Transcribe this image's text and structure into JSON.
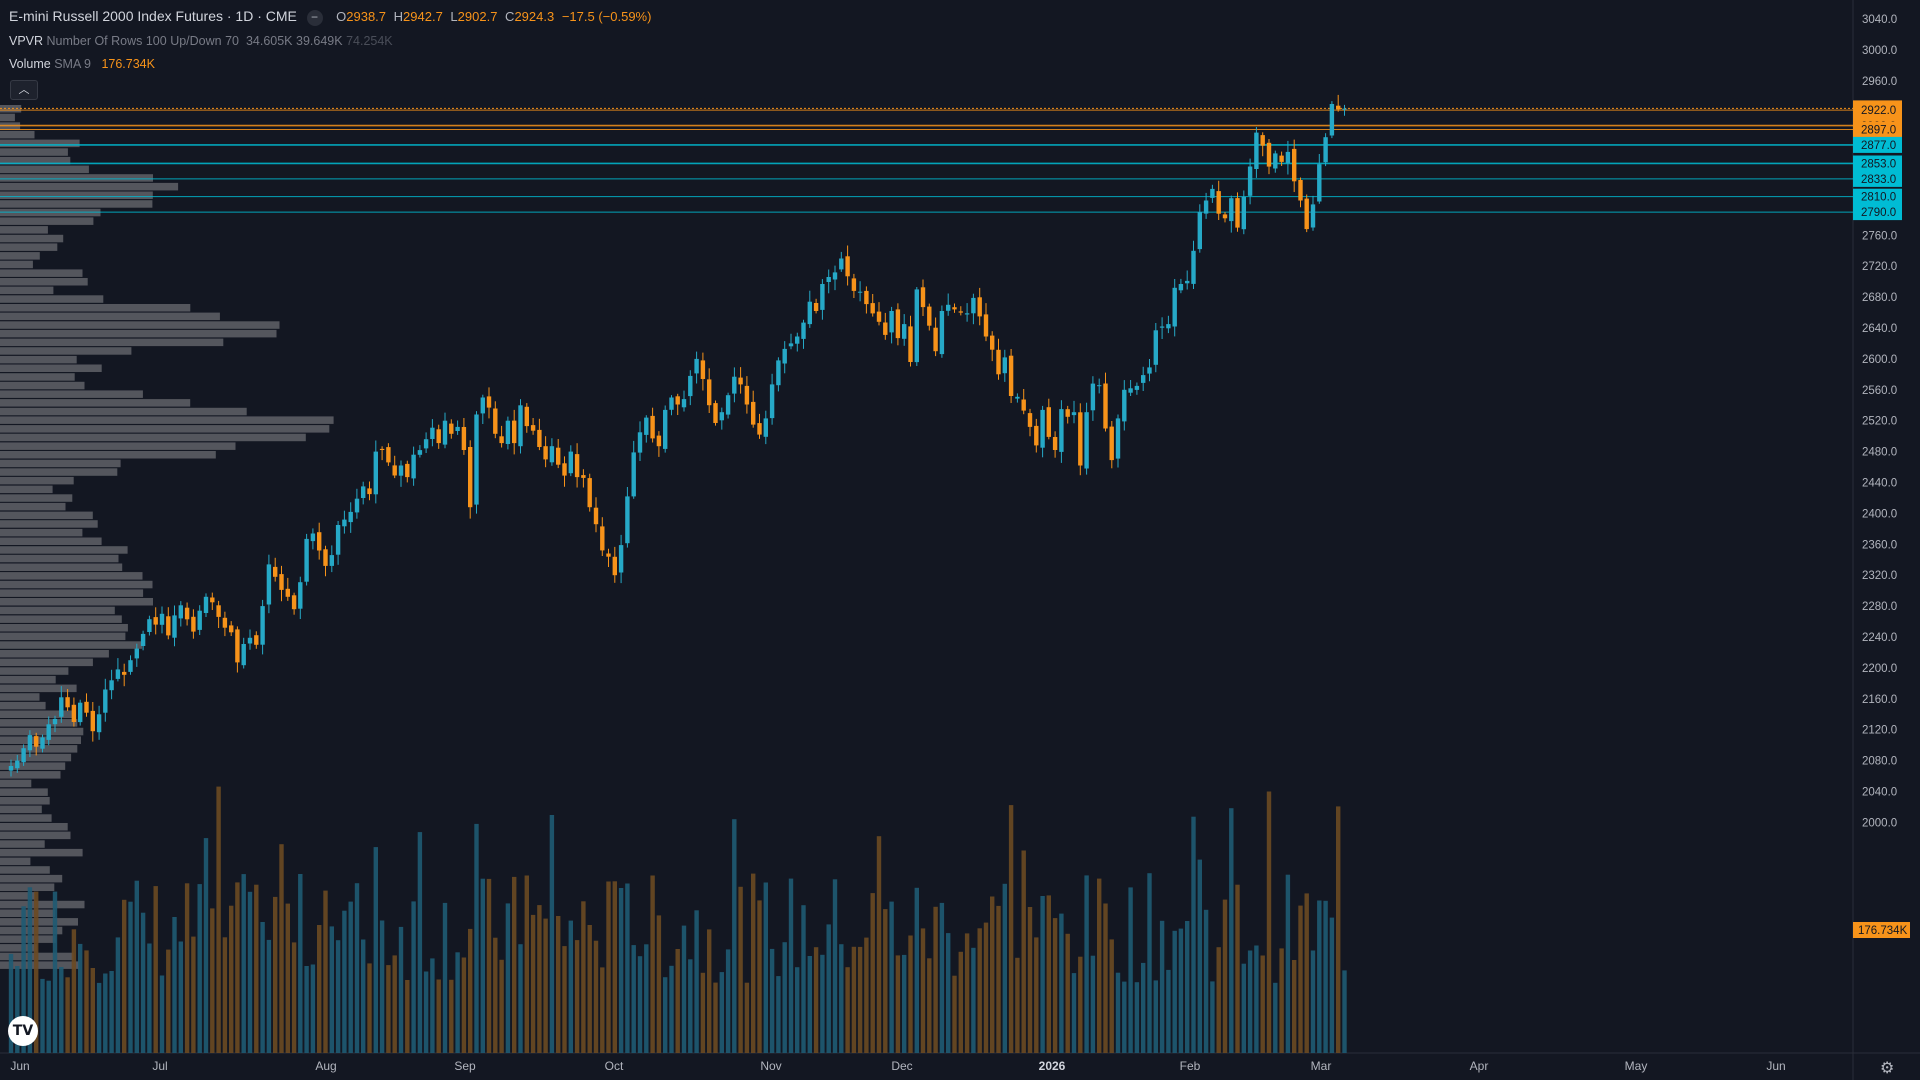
{
  "header": {
    "title": "E-mini Russell 2000 Index Futures · 1D · CME",
    "open_label": "O",
    "open": "2938.7",
    "high_label": "H",
    "high": "2942.7",
    "low_label": "L",
    "low": "2902.7",
    "close_label": "C",
    "close": "2924.3",
    "change": "−17.5 (−0.59%)"
  },
  "vpvr": {
    "name": "VPVR",
    "params": "Number Of Rows 100 Up/Down 70",
    "up": "34.605K",
    "down": "39.649K",
    "total": "74.254K"
  },
  "volume": {
    "name": "Volume",
    "params": "SMA 9",
    "value": "176.734K"
  },
  "colors": {
    "background": "#131722",
    "up": "#26a9c7",
    "down": "#f7931a",
    "profile": "#6d6f75",
    "last_price_line": "#f7931a",
    "level_orange": "#f7931a",
    "level_cyan": "#00bcd4"
  },
  "icons": {
    "hide": "minus-circle-icon",
    "collapse": "chevron-up-icon",
    "logo": "tradingview-logo-icon",
    "settings": "gear-icon"
  },
  "chart_data": {
    "type": "candlestick",
    "title": "E-mini Russell 2000 Index Futures · 1D · CME",
    "interval": "1D",
    "x_axis": {
      "labels": [
        "Jun",
        "Jul",
        "Aug",
        "Sep",
        "Oct",
        "Nov",
        "Dec",
        "2026",
        "Feb",
        "Mar",
        "Apr",
        "May",
        "Jun"
      ],
      "label_dates": [
        "2025-06-01",
        "2025-07-01",
        "2025-08-01",
        "2025-09-01",
        "2025-10-01",
        "2025-11-01",
        "2025-12-01",
        "2026-01-01",
        "2026-02-01",
        "2026-03-01",
        "2026-04-01",
        "2026-05-01",
        "2026-06-01"
      ]
    },
    "y_axis": {
      "ticks": [
        "3040.0",
        "3000.0",
        "2960.0",
        "2920.0",
        "2880.0",
        "2840.0",
        "2800.0",
        "2760.0",
        "2720.0",
        "2680.0",
        "2640.0",
        "2600.0",
        "2560.0",
        "2520.0",
        "2480.0",
        "2440.0",
        "2400.0",
        "2360.0",
        "2320.0",
        "2280.0",
        "2240.0",
        "2200.0",
        "2160.0",
        "2120.0",
        "2080.0",
        "2040.0",
        "2000.0"
      ],
      "range": [
        1961,
        3060
      ]
    },
    "price_levels": [
      {
        "label": "2924.3",
        "price": 2924.3,
        "kind": "last",
        "color": "#f7931a"
      },
      {
        "label": "2922.0",
        "price": 2922.0,
        "kind": "level",
        "color": "#f7931a"
      },
      {
        "label": "2902.0",
        "price": 2902.0,
        "kind": "level",
        "color": "#f7931a"
      },
      {
        "label": "2897.0",
        "price": 2897.0,
        "kind": "level",
        "color": "#f7931a"
      },
      {
        "label": "2877.0",
        "price": 2877.0,
        "kind": "level",
        "color": "#00bcd4"
      },
      {
        "label": "2853.0",
        "price": 2853.0,
        "kind": "level",
        "color": "#00bcd4"
      },
      {
        "label": "2833.0",
        "price": 2833.0,
        "kind": "level",
        "color": "#00bcd4"
      },
      {
        "label": "2810.0",
        "price": 2810.0,
        "kind": "level",
        "color": "#00bcd4"
      },
      {
        "label": "2790.0",
        "price": 2790.0,
        "kind": "level",
        "color": "#00bcd4"
      }
    ],
    "volume_sma_label": "176.734K",
    "closes": [
      2073,
      2080,
      2096,
      2113,
      2098,
      2110,
      2127,
      2134,
      2162,
      2149,
      2130,
      2155,
      2142,
      2118,
      2140,
      2172,
      2184,
      2198,
      2191,
      2210,
      2225,
      2244,
      2263,
      2256,
      2270,
      2242,
      2268,
      2281,
      2263,
      2247,
      2274,
      2292,
      2285,
      2266,
      2252,
      2246,
      2207,
      2231,
      2239,
      2230,
      2280,
      2334,
      2318,
      2301,
      2292,
      2276,
      2311,
      2367,
      2374,
      2352,
      2332,
      2346,
      2385,
      2392,
      2402,
      2419,
      2435,
      2425,
      2480,
      2482,
      2466,
      2449,
      2462,
      2447,
      2476,
      2482,
      2496,
      2511,
      2491,
      2520,
      2503,
      2512,
      2482,
      2408,
      2528,
      2550,
      2537,
      2503,
      2491,
      2520,
      2491,
      2540,
      2513,
      2507,
      2486,
      2470,
      2487,
      2463,
      2449,
      2480,
      2447,
      2446,
      2408,
      2386,
      2352,
      2344,
      2320,
      2359,
      2422,
      2479,
      2505,
      2524,
      2497,
      2487,
      2534,
      2550,
      2541,
      2548,
      2578,
      2600,
      2574,
      2540,
      2517,
      2531,
      2553,
      2577,
      2567,
      2541,
      2515,
      2502,
      2523,
      2567,
      2598,
      2613,
      2620,
      2629,
      2647,
      2674,
      2662,
      2697,
      2706,
      2712,
      2730,
      2707,
      2688,
      2687,
      2671,
      2659,
      2648,
      2631,
      2662,
      2627,
      2645,
      2596,
      2690,
      2667,
      2643,
      2610,
      2662,
      2670,
      2664,
      2660,
      2659,
      2679,
      2655,
      2629,
      2612,
      2580,
      2602,
      2552,
      2551,
      2533,
      2512,
      2488,
      2534,
      2499,
      2482,
      2535,
      2525,
      2531,
      2462,
      2531,
      2568,
      2566,
      2510,
      2469,
      2523,
      2560,
      2562,
      2565,
      2579,
      2589,
      2637,
      2642,
      2645,
      2692,
      2697,
      2701,
      2740,
      2790,
      2805,
      2820,
      2788,
      2782,
      2808,
      2770,
      2810,
      2849,
      2893,
      2876,
      2849,
      2866,
      2855,
      2868,
      2830,
      2805,
      2768,
      2800,
      2852,
      2887,
      2930,
      2923,
      2924
    ]
  }
}
